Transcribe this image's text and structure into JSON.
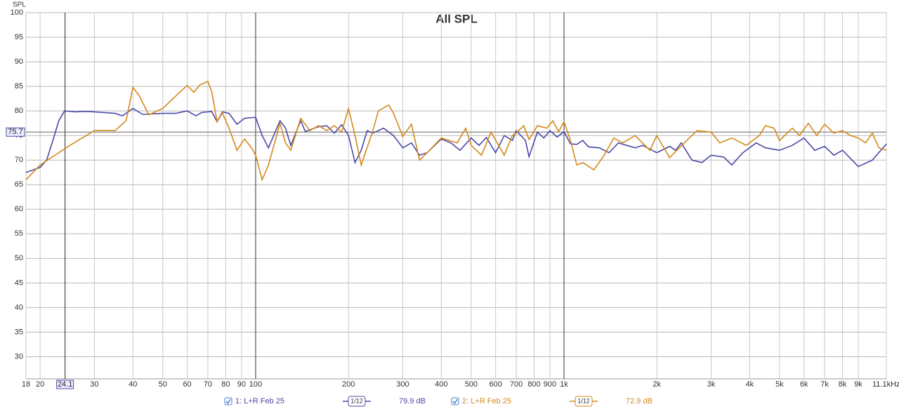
{
  "chart_data": {
    "type": "line",
    "title": "All SPL",
    "y_label": "SPL",
    "log_x": true,
    "grid": true,
    "xlim": [
      18,
      11100
    ],
    "ylim": [
      25.5,
      100
    ],
    "xticks": [
      18,
      20,
      30,
      40,
      50,
      60,
      70,
      80,
      90,
      100,
      200,
      300,
      400,
      500,
      600,
      700,
      800,
      900,
      {
        "value": 1000,
        "label": "1k"
      },
      {
        "value": 2000,
        "label": "2k"
      },
      {
        "value": 3000,
        "label": "3k"
      },
      {
        "value": 4000,
        "label": "4k"
      },
      {
        "value": 5000,
        "label": "5k"
      },
      {
        "value": 6000,
        "label": "6k"
      },
      {
        "value": 7000,
        "label": "7k"
      },
      {
        "value": 8000,
        "label": "8k"
      },
      {
        "value": 9000,
        "label": "9k"
      },
      {
        "value": 11100,
        "label": "11.1kHz"
      }
    ],
    "yticks": [
      30,
      35,
      40,
      45,
      50,
      55,
      60,
      65,
      70,
      75,
      80,
      85,
      90,
      95,
      100
    ],
    "cursor_x": 24.1,
    "cursor_y": 75.7,
    "series": [
      {
        "name": "1: L+R Feb 25",
        "color": "#4a4aa6",
        "smoothing": "1/12",
        "readout": "79.9 dB",
        "x": [
          18,
          20,
          21,
          22,
          23,
          24,
          26,
          28,
          30,
          35,
          37,
          40,
          43,
          50,
          55,
          60,
          64,
          67,
          70,
          72,
          75,
          78,
          82,
          87,
          92,
          100,
          105,
          110,
          120,
          125,
          130,
          140,
          145,
          155,
          160,
          170,
          180,
          190,
          200,
          210,
          220,
          230,
          240,
          260,
          280,
          300,
          320,
          340,
          360,
          400,
          430,
          460,
          500,
          530,
          560,
          600,
          640,
          680,
          700,
          750,
          770,
          820,
          860,
          900,
          950,
          1000,
          1050,
          1100,
          1150,
          1200,
          1300,
          1400,
          1500,
          1700,
          1800,
          2000,
          2200,
          2300,
          2400,
          2600,
          2800,
          3000,
          3300,
          3500,
          3800,
          4200,
          4500,
          5000,
          5500,
          6000,
          6500,
          7000,
          7500,
          8000,
          9000,
          10000,
          11100
        ],
        "values": [
          67.5,
          68.5,
          70,
          74,
          78,
          80,
          79.8,
          79.9,
          79.8,
          79.5,
          79,
          80.5,
          79.3,
          79.5,
          79.5,
          80,
          79,
          79.7,
          79.8,
          79.9,
          77.8,
          79.8,
          79.5,
          77.3,
          78.5,
          78.7,
          75,
          72.5,
          78,
          76.5,
          73,
          78,
          75.8,
          76.5,
          76.8,
          77,
          75.5,
          77.2,
          75,
          69.5,
          72,
          76,
          75.5,
          76.5,
          75,
          72.5,
          73.5,
          71,
          71.5,
          74.3,
          73.5,
          72,
          74.5,
          73,
          74.6,
          71.5,
          75,
          74,
          76,
          74,
          70.7,
          75.7,
          74.5,
          76,
          74.7,
          75.8,
          73.3,
          73.2,
          74,
          72.7,
          72.5,
          71.5,
          73.5,
          72.5,
          73,
          71.5,
          72.8,
          72,
          73.5,
          70,
          69.5,
          71,
          70.6,
          69,
          71.5,
          73.5,
          72.5,
          72,
          73,
          74.5,
          72,
          72.8,
          71,
          72,
          68.7,
          70,
          73.3
        ]
      },
      {
        "name": "2: L+R Feb 25",
        "color": "#d4891c",
        "smoothing": "1/12",
        "readout": "72.9 dB",
        "x": [
          18,
          20,
          25,
          30,
          35,
          38,
          40,
          42,
          45,
          50,
          55,
          60,
          63,
          66,
          70,
          72,
          75,
          78,
          82,
          87,
          92,
          97,
          100,
          105,
          110,
          120,
          125,
          130,
          140,
          150,
          160,
          170,
          180,
          190,
          200,
          210,
          220,
          240,
          250,
          270,
          280,
          300,
          320,
          340,
          360,
          400,
          450,
          480,
          500,
          540,
          580,
          640,
          680,
          700,
          740,
          770,
          820,
          880,
          920,
          960,
          1000,
          1050,
          1100,
          1150,
          1250,
          1350,
          1450,
          1550,
          1700,
          1900,
          2000,
          2200,
          2500,
          2700,
          3000,
          3200,
          3500,
          3900,
          4300,
          4500,
          4800,
          5000,
          5500,
          5800,
          6200,
          6600,
          7000,
          7500,
          8000,
          8500,
          9000,
          9500,
          10000,
          10500,
          11100
        ],
        "values": [
          66,
          69,
          73,
          76,
          76,
          78,
          84.8,
          83,
          79.2,
          80.5,
          83,
          85.2,
          83.8,
          85.3,
          86,
          84,
          77.8,
          79.6,
          76.5,
          72,
          74.3,
          72.5,
          71,
          66,
          69,
          77.5,
          73.5,
          72,
          78.5,
          76,
          77,
          76,
          77,
          75.7,
          80.5,
          75,
          69,
          76,
          80,
          81.2,
          79.5,
          74.8,
          77.3,
          70,
          71.5,
          74.5,
          73.5,
          76.5,
          73,
          71,
          75.7,
          71,
          75,
          75.5,
          77,
          74.2,
          77,
          76.5,
          78,
          75.8,
          77.8,
          74,
          69,
          69.5,
          68,
          71,
          74.5,
          73.5,
          75,
          72,
          75,
          70.5,
          74,
          76,
          75.7,
          73.5,
          74.5,
          73,
          75,
          77,
          76.5,
          74,
          76.5,
          75,
          77.5,
          75,
          77.3,
          75.5,
          76,
          75,
          74.5,
          73.5,
          75.5,
          72.5,
          72
        ]
      }
    ]
  }
}
